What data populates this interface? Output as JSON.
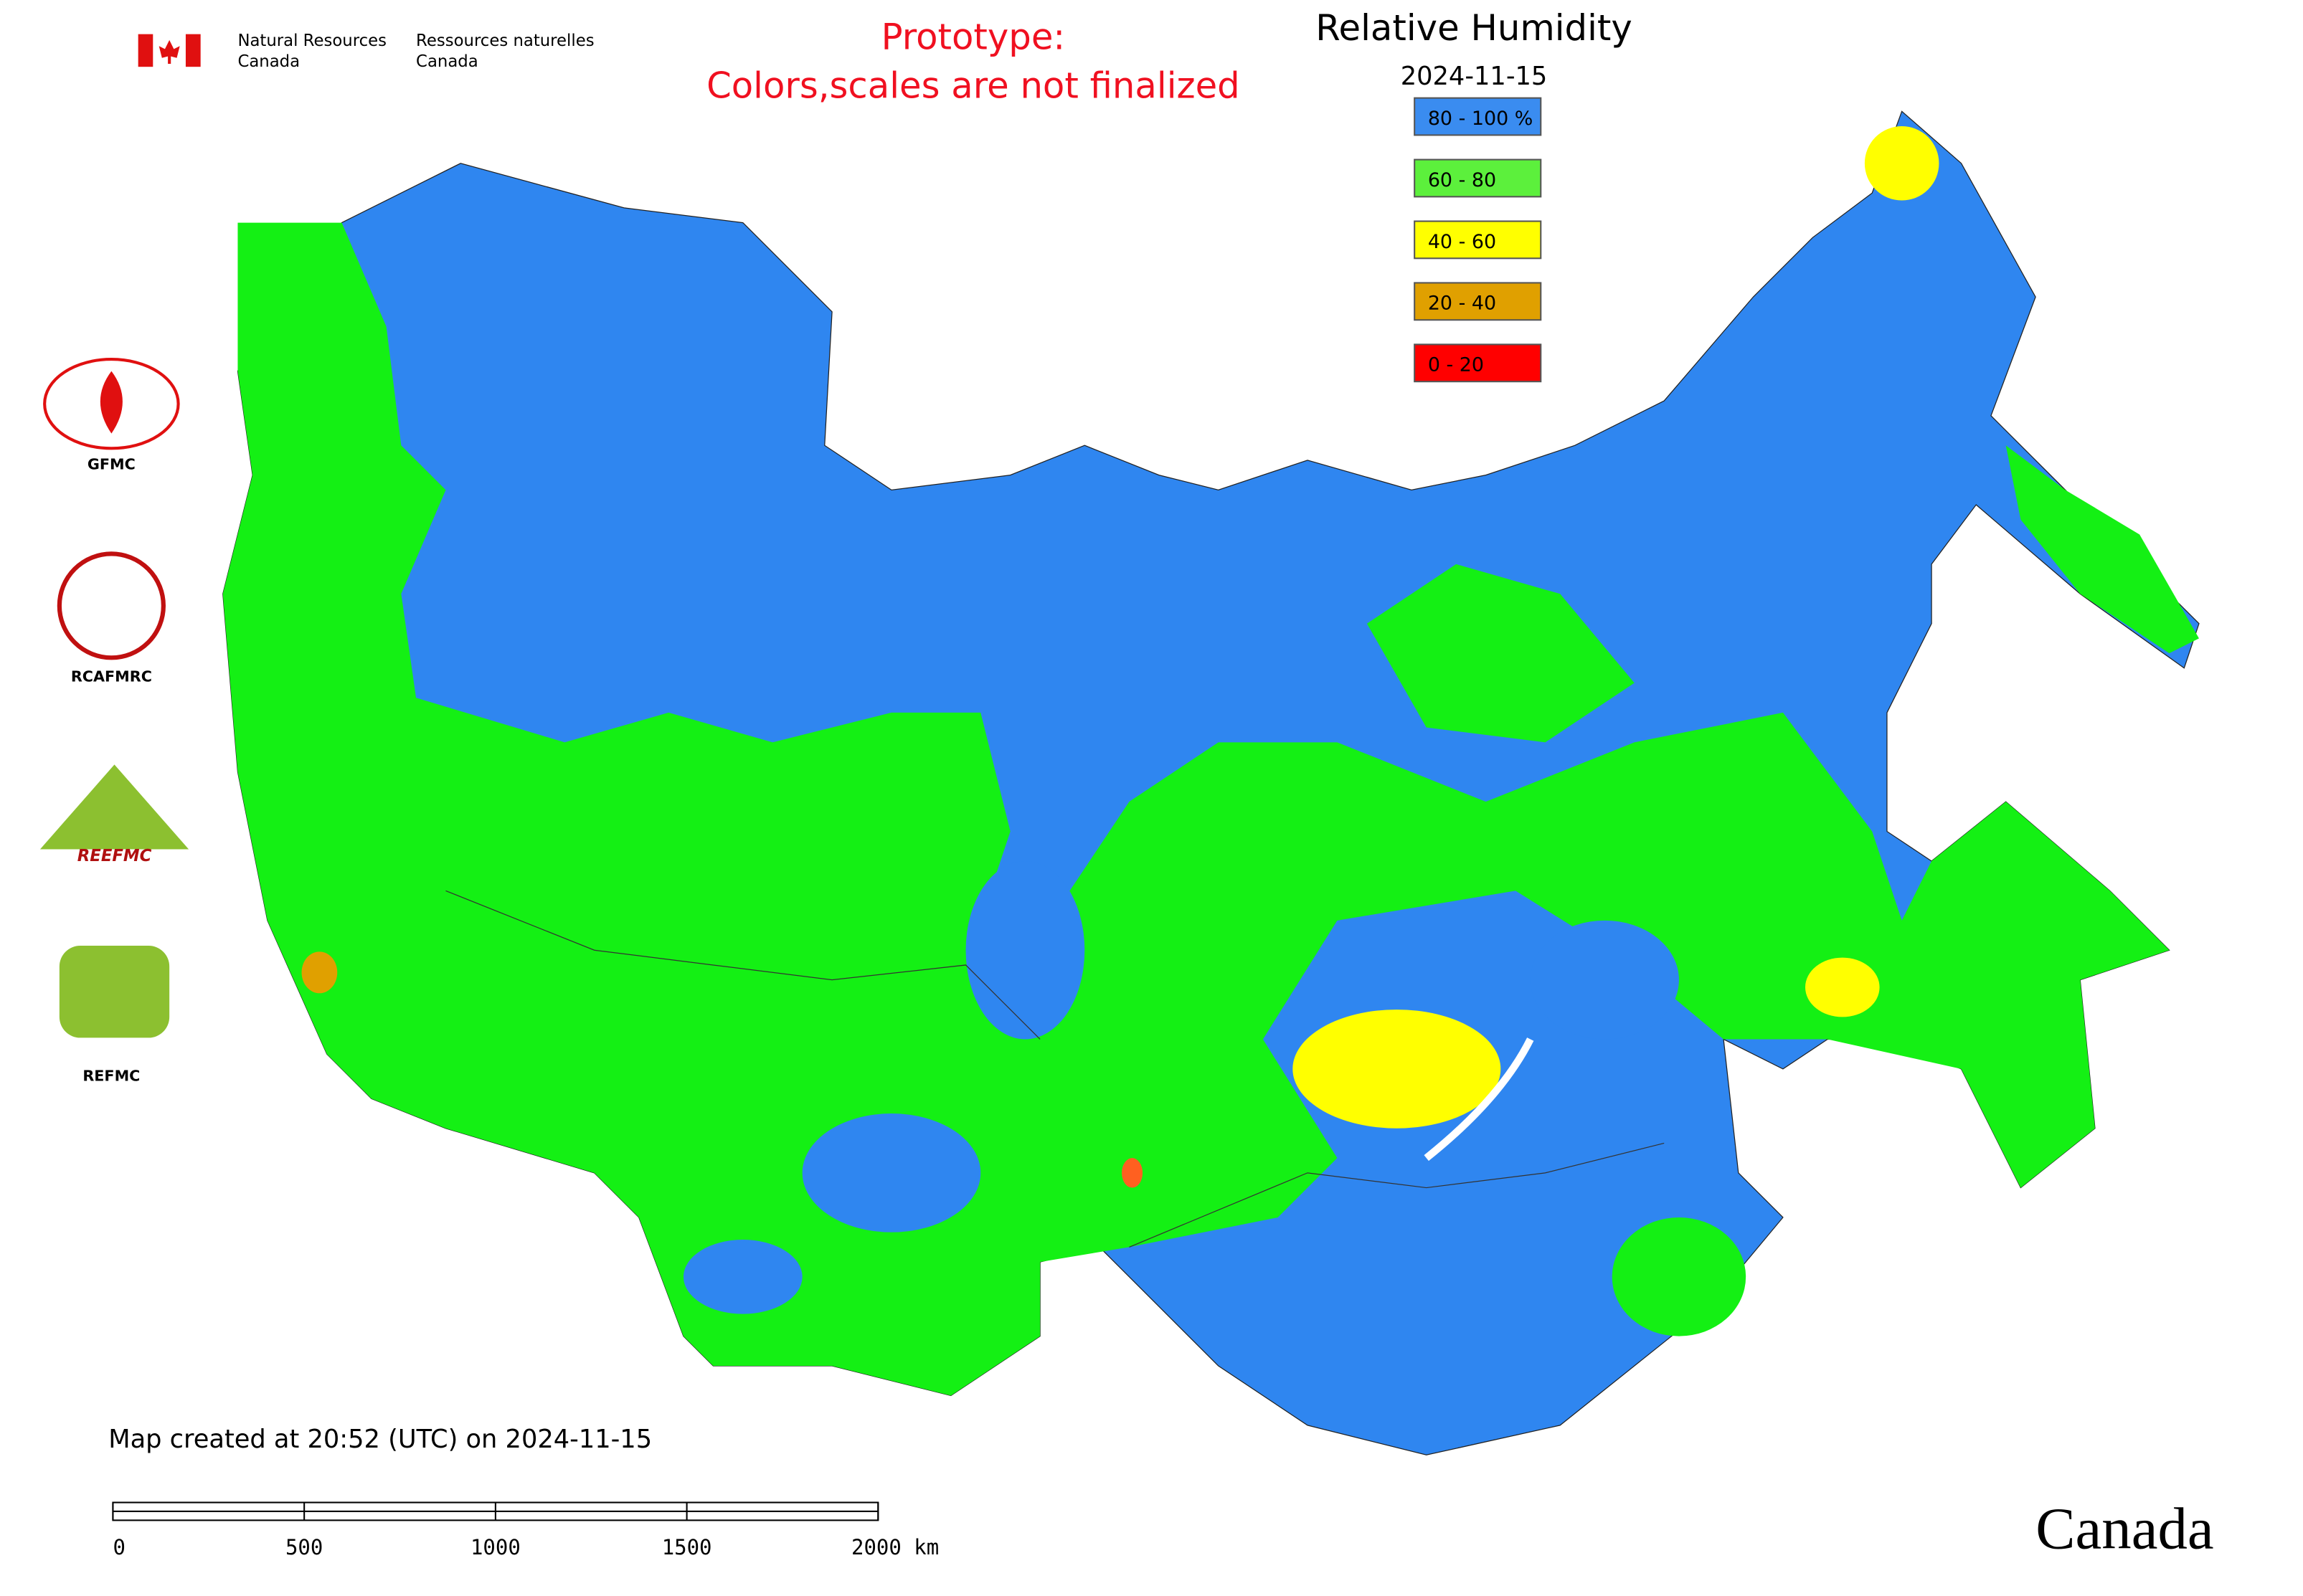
{
  "header": {
    "agency_en": "Natural Resources",
    "agency_en_2": "Canada",
    "agency_fr": "Ressources naturelles",
    "agency_fr_2": "Canada"
  },
  "notice": {
    "line1": "Prototype:",
    "line2": "Colors,scales are not finalized"
  },
  "legend": {
    "title": "Relative Humidity",
    "date": "2024-11-15",
    "items": [
      {
        "label": "80 - 100 %",
        "color": "#3a8cf0"
      },
      {
        "label": "60 - 80",
        "color": "#5cf03c"
      },
      {
        "label": "40 - 60",
        "color": "#ffff00"
      },
      {
        "label": "20 - 40",
        "color": "#e0a000"
      },
      {
        "label": "0 - 20",
        "color": "#ff0000"
      }
    ]
  },
  "logos": [
    "GFMC",
    "RCAFMRC",
    "REEFMC",
    "REFMC"
  ],
  "footer": {
    "created": "Map created at 20:52 (UTC) on 2024-11-15",
    "scale_labels": [
      "0",
      "500",
      "1000",
      "1500",
      "2000 km"
    ],
    "wordmark": "Canada"
  }
}
